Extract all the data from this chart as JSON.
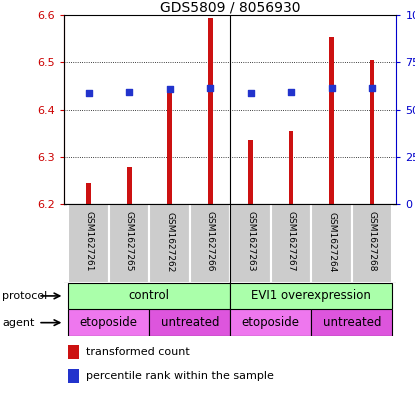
{
  "title": "GDS5809 / 8056930",
  "samples": [
    "GSM1627261",
    "GSM1627265",
    "GSM1627262",
    "GSM1627266",
    "GSM1627263",
    "GSM1627267",
    "GSM1627264",
    "GSM1627268"
  ],
  "bar_values": [
    6.245,
    6.278,
    6.435,
    6.595,
    6.335,
    6.355,
    6.555,
    6.505
  ],
  "bar_bottom": 6.2,
  "percentile_values": [
    6.435,
    6.437,
    6.443,
    6.445,
    6.436,
    6.437,
    6.445,
    6.445
  ],
  "ylim": [
    6.2,
    6.6
  ],
  "yticks_left": [
    6.2,
    6.3,
    6.4,
    6.5,
    6.6
  ],
  "bar_color": "#cc1111",
  "percentile_color": "#2233cc",
  "protocol_color": "#aaffaa",
  "agent_etoposide_color": "#ee77ee",
  "agent_untreated_color": "#dd55dd",
  "sample_box_color": "#cccccc",
  "legend_bar_label": "transformed count",
  "legend_pct_label": "percentile rank within the sample",
  "protocol_label": "protocol",
  "agent_label": "agent",
  "background_color": "#ffffff"
}
